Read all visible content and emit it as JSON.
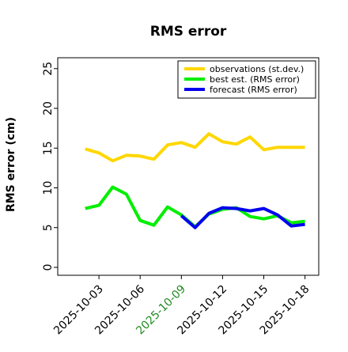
{
  "chart_data": {
    "type": "line",
    "title": "RMS error",
    "ylabel": "RMS error (cm)",
    "xlabel": "",
    "ylim": [
      0,
      26
    ],
    "yticks": [
      0,
      5,
      10,
      15,
      20,
      25
    ],
    "xlim": [
      "2025-10-00",
      "2025-10-19"
    ],
    "xticks": [
      {
        "label": "2025-10-03",
        "day": 3,
        "color": "#000000"
      },
      {
        "label": "2025-10-06",
        "day": 6,
        "color": "#000000"
      },
      {
        "label": "2025-10-09",
        "day": 9,
        "color": "#228B22"
      },
      {
        "label": "2025-10-12",
        "day": 12,
        "color": "#000000"
      },
      {
        "label": "2025-10-15",
        "day": 15,
        "color": "#000000"
      },
      {
        "label": "2025-10-18",
        "day": 18,
        "color": "#000000"
      }
    ],
    "grid": false,
    "legend_position": "top-right",
    "series": [
      {
        "name": "observations (st.dev.)",
        "color": "#FFD700",
        "x": [
          "2025-10-02",
          "2025-10-03",
          "2025-10-04",
          "2025-10-05",
          "2025-10-06",
          "2025-10-07",
          "2025-10-08",
          "2025-10-09",
          "2025-10-10",
          "2025-10-11",
          "2025-10-12",
          "2025-10-13",
          "2025-10-14",
          "2025-10-15",
          "2025-10-16",
          "2025-10-17",
          "2025-10-18"
        ],
        "y": [
          14.9,
          14.4,
          13.4,
          14.1,
          14.0,
          13.6,
          15.4,
          15.7,
          15.1,
          16.8,
          15.8,
          15.5,
          16.4,
          14.8,
          15.1,
          15.1,
          15.1
        ]
      },
      {
        "name": "best est. (RMS error)",
        "color": "#00EE00",
        "x": [
          "2025-10-02",
          "2025-10-03",
          "2025-10-04",
          "2025-10-05",
          "2025-10-06",
          "2025-10-07",
          "2025-10-08",
          "2025-10-09",
          "2025-10-10",
          "2025-10-11",
          "2025-10-12",
          "2025-10-13",
          "2025-10-14",
          "2025-10-15",
          "2025-10-16",
          "2025-10-17",
          "2025-10-18"
        ],
        "y": [
          7.4,
          7.8,
          10.1,
          9.2,
          5.9,
          5.3,
          7.6,
          6.6,
          5.1,
          6.7,
          7.3,
          7.5,
          6.4,
          6.1,
          6.5,
          5.6,
          5.8
        ]
      },
      {
        "name": "forecast (RMS error)",
        "color": "#0000EE",
        "x": [
          "2025-10-09",
          "2025-10-10",
          "2025-10-11",
          "2025-10-12",
          "2025-10-13",
          "2025-10-14",
          "2025-10-15",
          "2025-10-16",
          "2025-10-17",
          "2025-10-18"
        ],
        "y": [
          6.5,
          5.0,
          6.8,
          7.5,
          7.4,
          7.1,
          7.4,
          6.6,
          5.2,
          5.4
        ]
      }
    ]
  }
}
